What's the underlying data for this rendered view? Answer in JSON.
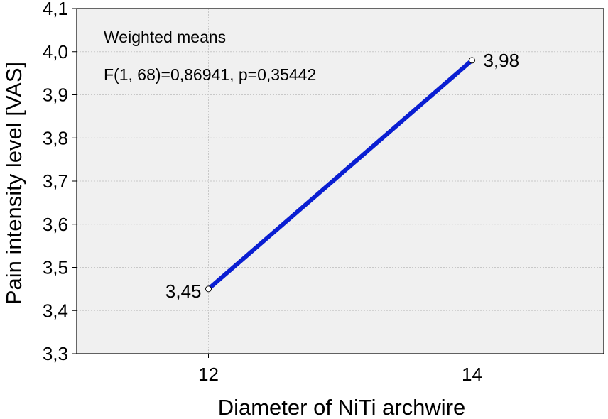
{
  "chart_data": {
    "type": "line",
    "title": "",
    "xlabel": "Diameter of NiTi archwire",
    "ylabel": "Pain intensity level [VAS]",
    "x_categories": [
      "12",
      "14"
    ],
    "xlim": [
      11,
      15
    ],
    "ylim": [
      3.3,
      4.1
    ],
    "y_ticks": [
      "3,3",
      "3,4",
      "3,5",
      "3,6",
      "3,7",
      "3,8",
      "3,9",
      "4,0",
      "4,1"
    ],
    "grid": true,
    "series": [
      {
        "points": [
          {
            "x": 12,
            "y": 3.45,
            "label": "3,45"
          },
          {
            "x": 14,
            "y": 3.98,
            "label": "3,98"
          }
        ]
      }
    ],
    "annotations": {
      "line1": "Weighted means",
      "line2": "F(1, 68)=0,86941, p=0,35442"
    },
    "colors": {
      "plot_background": "#f0f0f0",
      "series_line": "#0a1ed2",
      "grid": "#c8c8c8"
    }
  }
}
